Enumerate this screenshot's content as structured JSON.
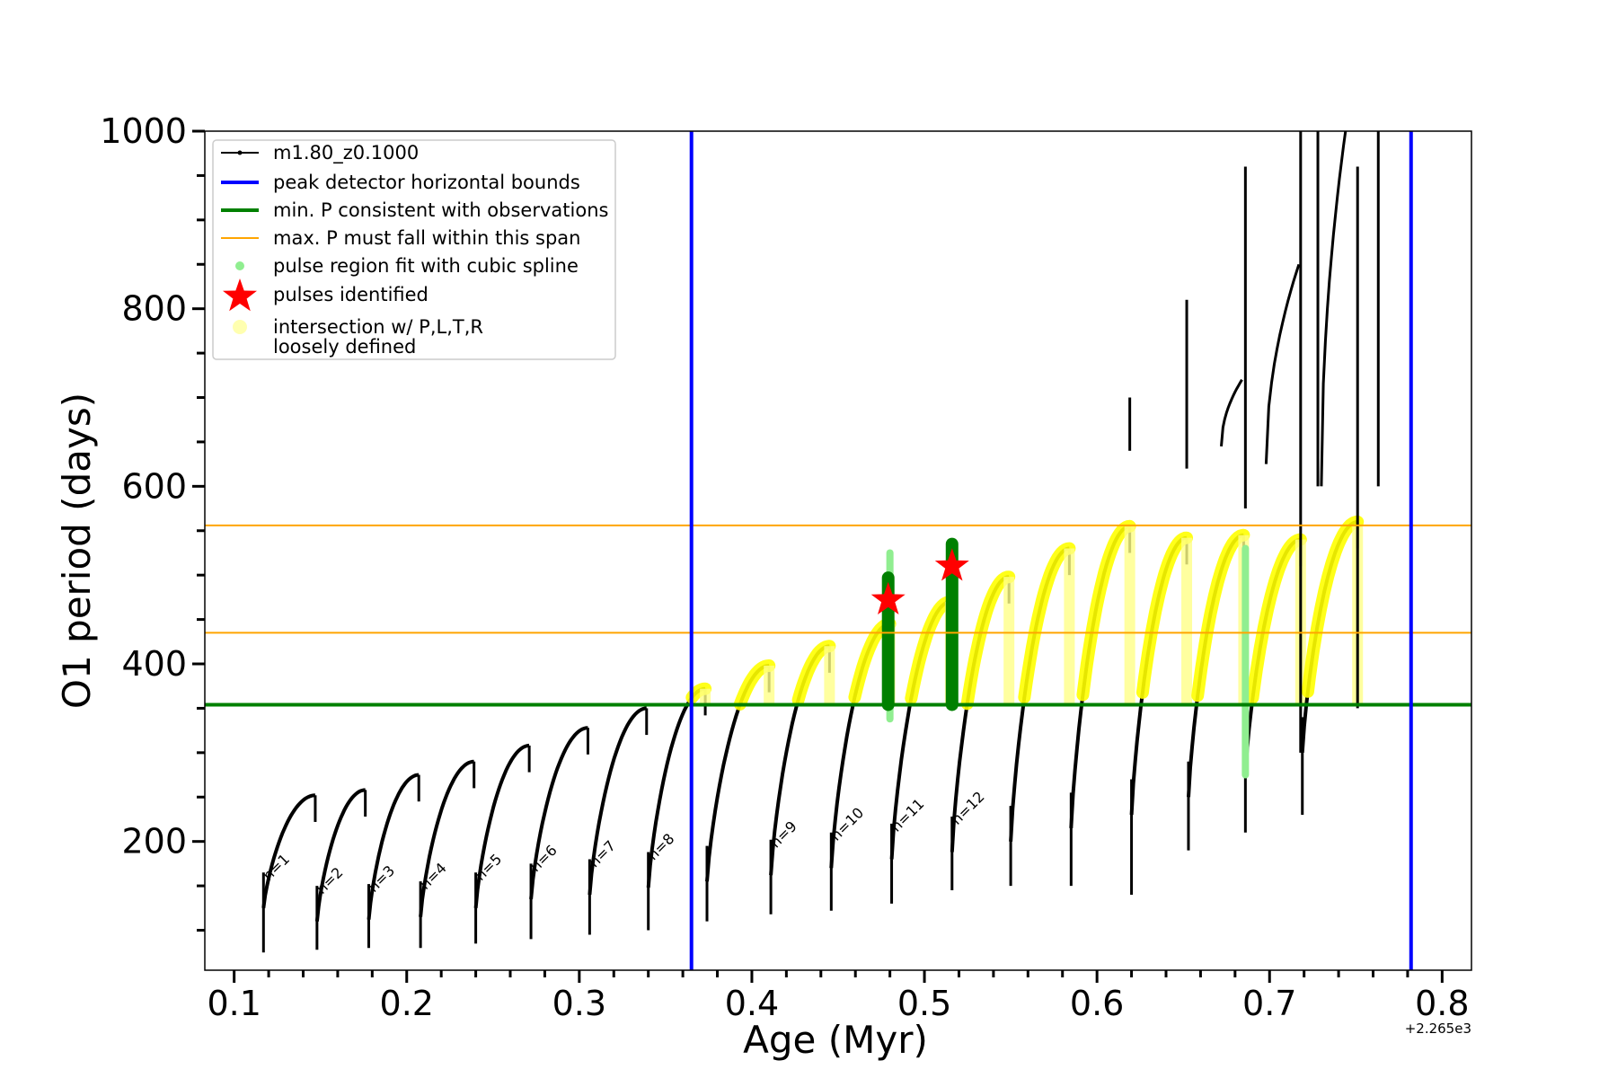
{
  "chart_data": {
    "type": "line",
    "xlabel": "Age (Myr)",
    "ylabel": "O1 period (days)",
    "x_offset_label": "+2.265e3",
    "xlim": [
      0.083,
      0.817
    ],
    "ylim": [
      55,
      1000
    ],
    "xticks": [
      0.1,
      0.2,
      0.3,
      0.4,
      0.5,
      0.6,
      0.7,
      0.8
    ],
    "xtick_labels": [
      "0.1",
      "0.2",
      "0.3",
      "0.4",
      "0.5",
      "0.6",
      "0.7",
      "0.8"
    ],
    "yticks": [
      200,
      400,
      600,
      800,
      1000
    ],
    "ytick_labels": [
      "200",
      "400",
      "600",
      "800",
      "1000"
    ],
    "legend": {
      "placement": "upper-left",
      "entries": [
        {
          "label": "m1.80_z0.1000",
          "kind": "line-marker",
          "color": "#000000"
        },
        {
          "label": "peak detector horizontal bounds",
          "kind": "line",
          "color": "#0000ff"
        },
        {
          "label": "min. P consistent with observations",
          "kind": "line",
          "color": "#008000"
        },
        {
          "label": "max. P must fall within this span",
          "kind": "line",
          "color": "#ffa500"
        },
        {
          "label": "pulse region fit with cubic spline",
          "kind": "dot",
          "color": "#90ee90"
        },
        {
          "label": "pulses identified",
          "kind": "star",
          "color": "#ff0000"
        },
        {
          "label": "intersection w/ P,L,T,R",
          "label2": "loosely defined",
          "kind": "dot",
          "color": "#ffffb0"
        }
      ]
    },
    "vertical_bounds": [
      0.365,
      0.782
    ],
    "min_period": 354,
    "max_period_span": [
      435,
      556
    ],
    "series_name": "m1.80_z0.1000",
    "pulses": [
      {
        "x0": 0.117,
        "x1": 0.147,
        "start": 125,
        "peak": 252,
        "drop": 75,
        "label": "n=1"
      },
      {
        "x0": 0.148,
        "x1": 0.176,
        "start": 110,
        "peak": 258,
        "drop": 78,
        "label": "n=2"
      },
      {
        "x0": 0.178,
        "x1": 0.207,
        "start": 112,
        "peak": 275,
        "drop": 80,
        "label": "n=3"
      },
      {
        "x0": 0.208,
        "x1": 0.239,
        "start": 115,
        "peak": 290,
        "drop": 80,
        "label": "n=4"
      },
      {
        "x0": 0.24,
        "x1": 0.271,
        "start": 125,
        "peak": 308,
        "drop": 85,
        "label": "n=5"
      },
      {
        "x0": 0.272,
        "x1": 0.305,
        "start": 135,
        "peak": 328,
        "drop": 90,
        "label": "n=6"
      },
      {
        "x0": 0.306,
        "x1": 0.339,
        "start": 140,
        "peak": 350,
        "drop": 95,
        "label": "n=7"
      },
      {
        "x0": 0.34,
        "x1": 0.373,
        "start": 148,
        "peak": 372,
        "drop": 100,
        "label": "n=8"
      },
      {
        "x0": 0.374,
        "x1": 0.41,
        "start": 155,
        "peak": 398,
        "drop": 110,
        "label": ""
      },
      {
        "x0": 0.411,
        "x1": 0.445,
        "start": 162,
        "peak": 420,
        "drop": 118,
        "label": "n=9"
      },
      {
        "x0": 0.446,
        "x1": 0.48,
        "start": 170,
        "peak": 445,
        "drop": 122,
        "label": "n=10"
      },
      {
        "x0": 0.481,
        "x1": 0.515,
        "start": 180,
        "peak": 470,
        "drop": 130,
        "label": "n=11"
      },
      {
        "x0": 0.516,
        "x1": 0.549,
        "start": 188,
        "peak": 498,
        "drop": 145,
        "label": "n=12"
      },
      {
        "x0": 0.55,
        "x1": 0.584,
        "start": 200,
        "peak": 530,
        "drop": 150,
        "label": ""
      },
      {
        "x0": 0.585,
        "x1": 0.619,
        "start": 215,
        "peak": 555,
        "drop": 150,
        "label": ""
      },
      {
        "x0": 0.62,
        "x1": 0.652,
        "start": 230,
        "peak": 542,
        "drop": 140,
        "label": ""
      },
      {
        "x0": 0.653,
        "x1": 0.685,
        "start": 250,
        "peak": 545,
        "drop": 190,
        "label": ""
      },
      {
        "x0": 0.686,
        "x1": 0.718,
        "start": 275,
        "peak": 540,
        "drop": 210,
        "label": ""
      },
      {
        "x0": 0.719,
        "x1": 0.751,
        "start": 300,
        "peak": 560,
        "drop": 230,
        "label": ""
      }
    ],
    "spikes": [
      {
        "x": 0.619,
        "low": 640,
        "high": 700
      },
      {
        "x": 0.652,
        "low": 620,
        "high": 810
      },
      {
        "x": 0.686,
        "low": 575,
        "high": 960
      },
      {
        "x": 0.718,
        "low": 300,
        "high": 1000
      },
      {
        "x": 0.728,
        "low": 600,
        "high": 1000
      },
      {
        "x": 0.751,
        "low": 350,
        "high": 960
      },
      {
        "x": 0.763,
        "low": 600,
        "high": 1000
      }
    ],
    "high_tracks": [
      {
        "x": [
          0.672,
          0.684
        ],
        "y": [
          645,
          720
        ]
      },
      {
        "x": [
          0.698,
          0.717
        ],
        "y": [
          625,
          850
        ]
      },
      {
        "x": [
          0.73,
          0.744
        ],
        "y": [
          600,
          1000
        ]
      }
    ],
    "spline_highlight": [
      {
        "x": 0.48,
        "low": 338,
        "high": 525
      },
      {
        "x": 0.686,
        "low": 275,
        "high": 530
      }
    ],
    "identified_pulses": [
      {
        "x": 0.479,
        "y": 472
      },
      {
        "x": 0.516,
        "y": 510
      }
    ]
  }
}
